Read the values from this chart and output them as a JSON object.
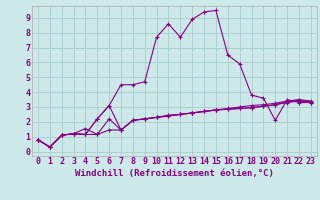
{
  "bg_color": "#cce8e8",
  "grid_color": "#aacccc",
  "line_color": "#880088",
  "marker": "+",
  "xlabel": "Windchill (Refroidissement éolien,°C)",
  "xlabel_fontsize": 6.5,
  "tick_fontsize": 6,
  "xlim": [
    -0.5,
    23.5
  ],
  "ylim": [
    -0.3,
    9.8
  ],
  "yticks": [
    0,
    1,
    2,
    3,
    4,
    5,
    6,
    7,
    8,
    9
  ],
  "xticks": [
    0,
    1,
    2,
    3,
    4,
    5,
    6,
    7,
    8,
    9,
    10,
    11,
    12,
    13,
    14,
    15,
    16,
    17,
    18,
    19,
    20,
    21,
    22,
    23
  ],
  "series": [
    [
      0.8,
      0.3,
      1.1,
      1.2,
      1.15,
      2.2,
      3.1,
      4.5,
      4.5,
      4.7,
      7.7,
      8.6,
      7.7,
      8.9,
      9.4,
      9.5,
      6.5,
      5.9,
      3.8,
      3.6,
      2.1,
      3.5,
      3.3,
      3.3
    ],
    [
      0.8,
      0.3,
      1.1,
      1.2,
      1.55,
      1.15,
      2.2,
      1.45,
      2.1,
      2.2,
      2.3,
      2.4,
      2.5,
      2.6,
      2.7,
      2.8,
      2.85,
      2.9,
      2.95,
      3.05,
      3.15,
      3.3,
      3.4,
      3.3
    ],
    [
      0.8,
      0.3,
      1.1,
      1.2,
      1.15,
      2.2,
      3.1,
      1.45,
      2.1,
      2.2,
      2.3,
      2.45,
      2.5,
      2.6,
      2.7,
      2.8,
      2.9,
      3.0,
      3.1,
      3.15,
      3.25,
      3.4,
      3.5,
      3.4
    ],
    [
      0.8,
      0.3,
      1.1,
      1.2,
      1.15,
      1.15,
      1.45,
      1.45,
      2.1,
      2.2,
      2.3,
      2.4,
      2.5,
      2.6,
      2.7,
      2.8,
      2.85,
      2.9,
      2.95,
      3.05,
      3.15,
      3.35,
      3.45,
      3.35
    ]
  ]
}
